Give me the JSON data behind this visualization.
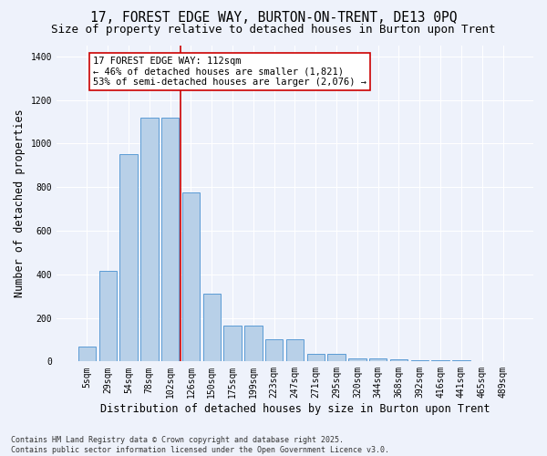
{
  "title_line1": "17, FOREST EDGE WAY, BURTON-ON-TRENT, DE13 0PQ",
  "title_line2": "Size of property relative to detached houses in Burton upon Trent",
  "xlabel": "Distribution of detached houses by size in Burton upon Trent",
  "ylabel": "Number of detached properties",
  "categories": [
    "5sqm",
    "29sqm",
    "54sqm",
    "78sqm",
    "102sqm",
    "126sqm",
    "150sqm",
    "175sqm",
    "199sqm",
    "223sqm",
    "247sqm",
    "271sqm",
    "295sqm",
    "320sqm",
    "344sqm",
    "368sqm",
    "392sqm",
    "416sqm",
    "441sqm",
    "465sqm",
    "489sqm"
  ],
  "values": [
    70,
    415,
    950,
    1120,
    1120,
    775,
    310,
    165,
    165,
    100,
    100,
    35,
    35,
    15,
    15,
    10,
    5,
    5,
    5,
    2,
    2
  ],
  "bar_color": "#b8d0e8",
  "bar_edge_color": "#5b9bd5",
  "vline_x_index": 4.5,
  "vline_color": "#cc0000",
  "annotation_text": "17 FOREST EDGE WAY: 112sqm\n← 46% of detached houses are smaller (1,821)\n53% of semi-detached houses are larger (2,076) →",
  "annotation_box_facecolor": "#ffffff",
  "annotation_box_edgecolor": "#cc0000",
  "ylim": [
    0,
    1450
  ],
  "yticks": [
    0,
    200,
    400,
    600,
    800,
    1000,
    1200,
    1400
  ],
  "footnote": "Contains HM Land Registry data © Crown copyright and database right 2025.\nContains public sector information licensed under the Open Government Licence v3.0.",
  "bg_color": "#eef2fb",
  "grid_color": "#ffffff",
  "title_fontsize": 10.5,
  "subtitle_fontsize": 9,
  "axis_label_fontsize": 8.5,
  "tick_fontsize": 7,
  "annotation_fontsize": 7.5,
  "footnote_fontsize": 6
}
